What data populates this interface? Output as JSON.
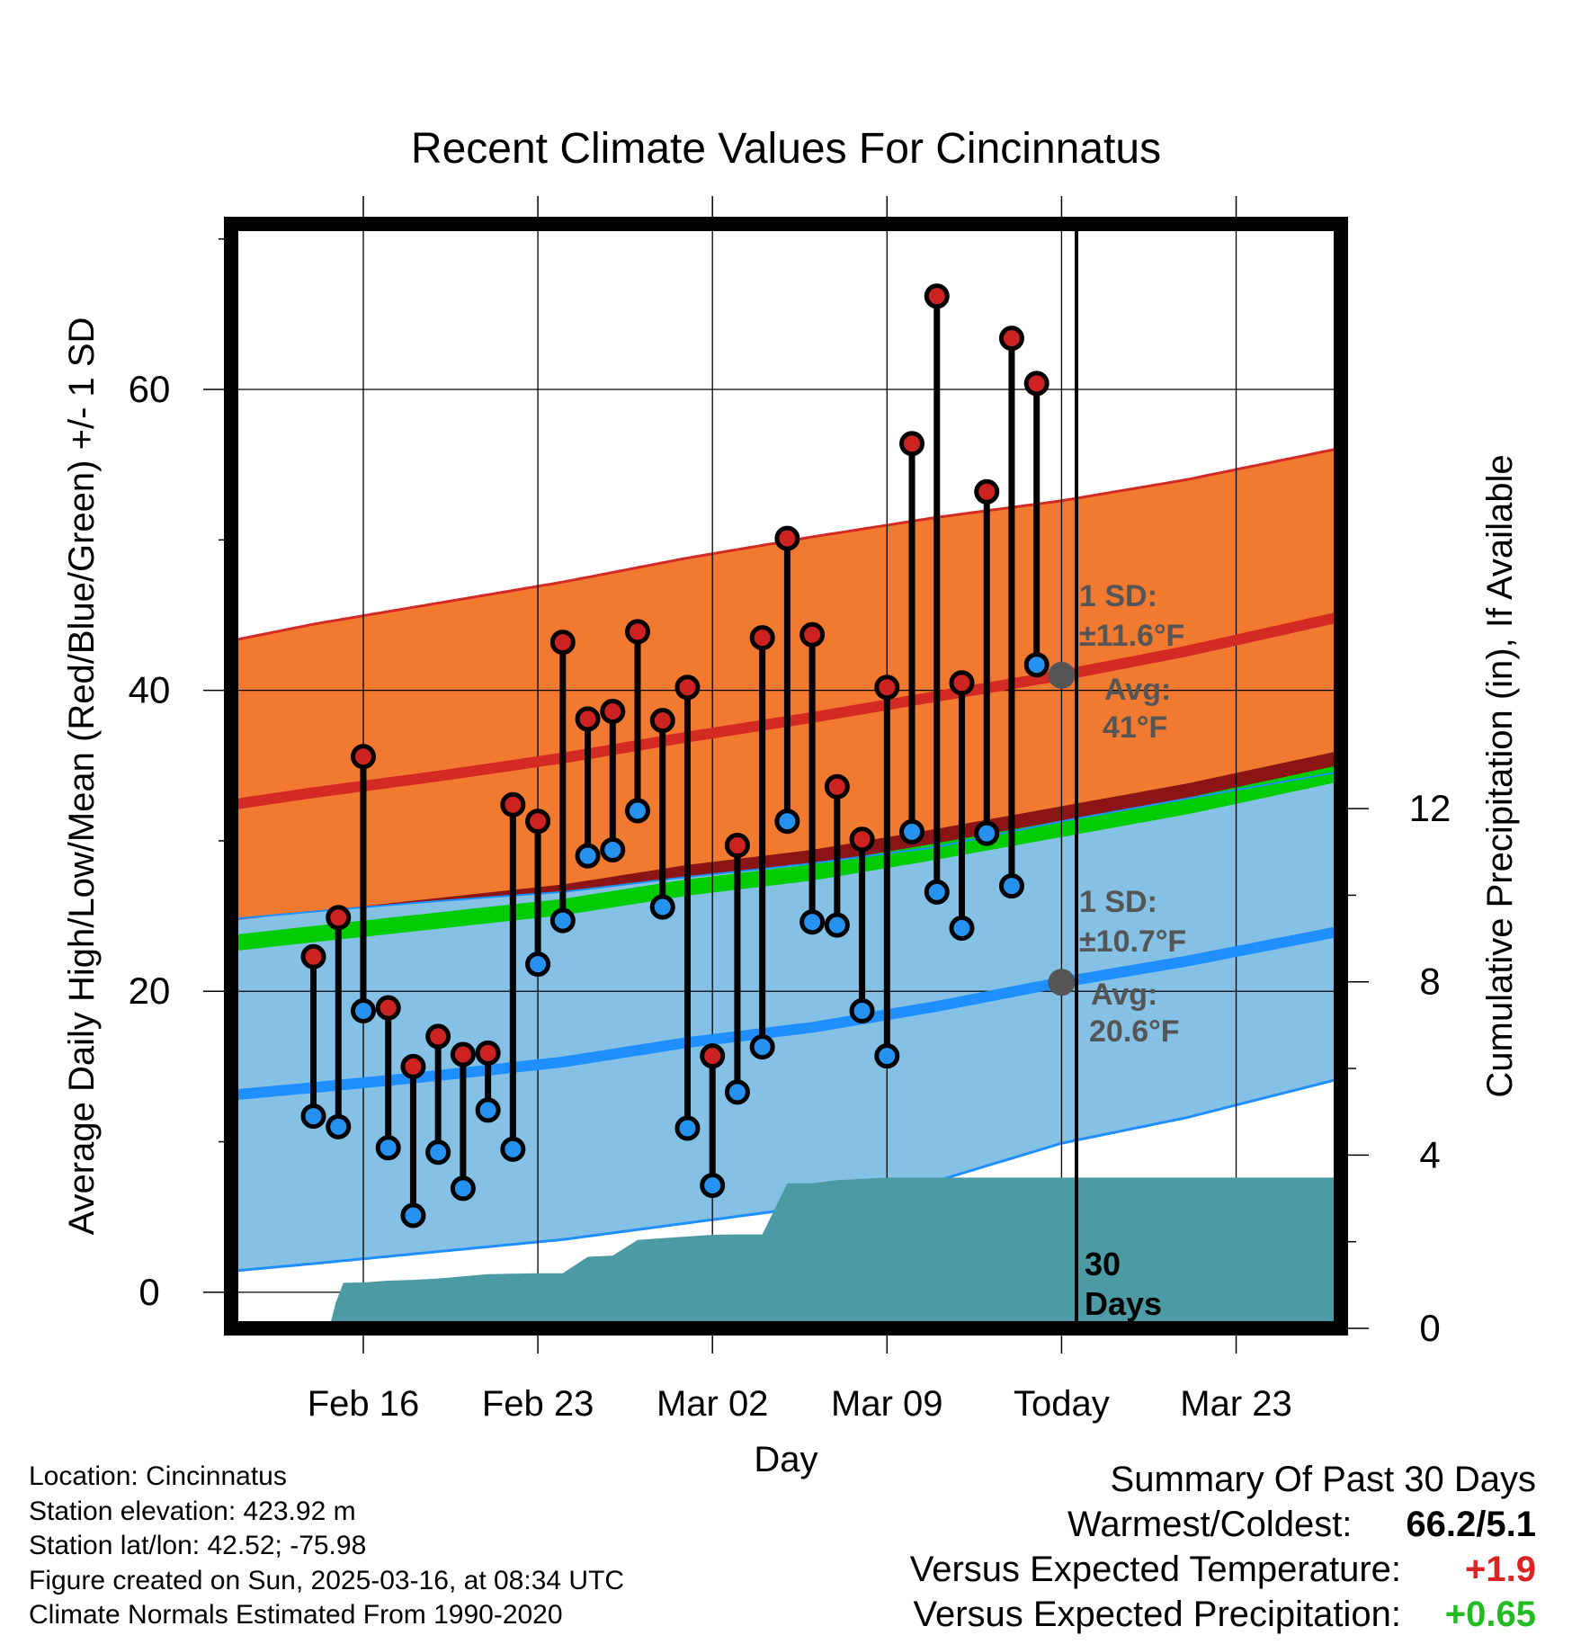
{
  "chart_data": {
    "type": "line",
    "title": "Recent Climate Values For Cincinnatus",
    "xlabel": "Day",
    "ylabel": "Average Daily High/Low/Mean (Red/Blue/Green) +/- 1 SD",
    "y2label": "Cumulative Precipitation (in), If Available",
    "x_day_range": [
      -33.3,
      11.2
    ],
    "ylim": [
      -2.4,
      71
    ],
    "y2lim": [
      0,
      25.5
    ],
    "x_ticks": [
      {
        "day": -28,
        "label": "Feb 16"
      },
      {
        "day": -21,
        "label": "Feb 23"
      },
      {
        "day": -14,
        "label": "Mar 02"
      },
      {
        "day": -7,
        "label": "Mar 09"
      },
      {
        "day": 0,
        "label": "Today"
      },
      {
        "day": 7,
        "label": "Mar 23"
      }
    ],
    "y_ticks": [
      0,
      20,
      40,
      60
    ],
    "y2_ticks": [
      0,
      4,
      8,
      12
    ],
    "grid": true,
    "daily": {
      "days": [
        -30,
        -29,
        -28,
        -27,
        -26,
        -25,
        -24,
        -23,
        -22,
        -21,
        -20,
        -19,
        -18,
        -17,
        -16,
        -15,
        -14,
        -13,
        -12,
        -11,
        -10,
        -9,
        -8,
        -7,
        -6,
        -5,
        -4,
        -3,
        -2,
        -1
      ],
      "high": [
        22.3,
        24.9,
        35.6,
        18.9,
        15.0,
        17.0,
        15.8,
        15.9,
        32.4,
        31.3,
        43.2,
        38.1,
        38.6,
        43.9,
        38.0,
        40.2,
        15.7,
        29.7,
        43.5,
        50.1,
        43.7,
        33.6,
        30.1,
        40.2,
        56.4,
        66.2,
        40.5,
        53.2,
        63.4,
        60.4
      ],
      "low": [
        11.7,
        11.0,
        18.7,
        9.6,
        5.1,
        9.3,
        6.9,
        12.1,
        9.5,
        21.8,
        24.7,
        29.0,
        29.4,
        32.0,
        25.6,
        10.9,
        7.1,
        13.3,
        16.3,
        31.3,
        24.6,
        24.4,
        18.7,
        15.7,
        30.6,
        26.6,
        24.2,
        30.5,
        27.0,
        41.7
      ]
    },
    "normals": {
      "days": [
        -33.3,
        -30,
        -25,
        -20,
        -15,
        -10,
        -5,
        0,
        5,
        11.2
      ],
      "high_avg": [
        32.4,
        33.2,
        34.3,
        35.5,
        36.9,
        38.2,
        39.6,
        41.0,
        42.6,
        44.9
      ],
      "high_upper": [
        43.3,
        44.4,
        45.8,
        47.2,
        48.8,
        50.2,
        51.5,
        52.6,
        54.0,
        56.1
      ],
      "low_avg": [
        13.1,
        13.6,
        14.4,
        15.3,
        16.6,
        17.6,
        19.0,
        20.6,
        22.0,
        24.0
      ],
      "low_upper": [
        24.8,
        25.3,
        26.0,
        26.6,
        27.6,
        28.5,
        29.6,
        31.3,
        32.8,
        34.6
      ],
      "low_lower": [
        1.4,
        1.9,
        2.7,
        3.5,
        4.6,
        5.7,
        7.4,
        9.9,
        11.6,
        14.2
      ],
      "mean": [
        23.2,
        23.8,
        24.7,
        25.6,
        26.9,
        27.9,
        29.3,
        30.8,
        32.3,
        34.5
      ],
      "high_sd": 11.6,
      "low_sd": 10.7,
      "high_today": 41,
      "low_today": 20.6
    },
    "precip": {
      "days": [
        -33.3,
        -30.2,
        -29.3,
        -29.1,
        -28.8,
        -28,
        -27,
        -26,
        -25,
        -24,
        -23,
        -22,
        -21,
        -20.7,
        -20,
        -19,
        -18,
        -17,
        -16,
        -15,
        -14,
        -13,
        -12,
        -11,
        -10,
        -9,
        -8,
        -7,
        -6,
        -5,
        -4,
        -3,
        -2,
        -1,
        0,
        11.2
      ],
      "cumulative": [
        0,
        0,
        0.15,
        0.6,
        1.05,
        1.06,
        1.1,
        1.12,
        1.15,
        1.2,
        1.25,
        1.26,
        1.27,
        1.27,
        1.27,
        1.65,
        1.68,
        2.04,
        2.08,
        2.12,
        2.16,
        2.17,
        2.17,
        3.35,
        3.35,
        3.42,
        3.45,
        3.48,
        3.48,
        3.48,
        3.48,
        3.48,
        3.48,
        3.48,
        3.48,
        3.48
      ]
    },
    "annotations": {
      "high": {
        "sd": "1 SD:",
        "sd_val": "±11.6°F",
        "avg": "Avg:",
        "avg_val": "41°F"
      },
      "low": {
        "sd": "1 SD:",
        "sd_val": "±10.7°F",
        "avg": "Avg:",
        "avg_val": "20.6°F"
      },
      "window_line1": "30",
      "window_line2": "Days"
    },
    "colors": {
      "high_band": "#f27a30",
      "high_line": "#d42a24",
      "low_band": "#84c1e5",
      "low_line": "#1f8fff",
      "mean_band": "#00cc00",
      "overlap": "#8b1414",
      "precip": "#4b9aa4",
      "high_dot": "#cc2222",
      "low_dot": "#2592f0",
      "annotation": "#555555",
      "warm": "#dd2222",
      "wet": "#22bb22"
    }
  },
  "footer": {
    "location": "Location: Cincinnatus",
    "elevation": "Station elevation: 423.92 m",
    "latlon": "Station lat/lon: 42.52; -75.98",
    "created": "Figure created on Sun, 2025-03-16, at 08:34 UTC",
    "normals": "Climate Normals Estimated From 1990-2020"
  },
  "summary": {
    "title": "Summary Of Past 30 Days",
    "warm_label": "Warmest/Coldest:",
    "warm_value": "66.2/5.1",
    "temp_label": "Versus Expected Temperature:",
    "temp_value": "+1.9",
    "precip_label": "Versus Expected Precipitation:",
    "precip_value": "+0.65"
  }
}
